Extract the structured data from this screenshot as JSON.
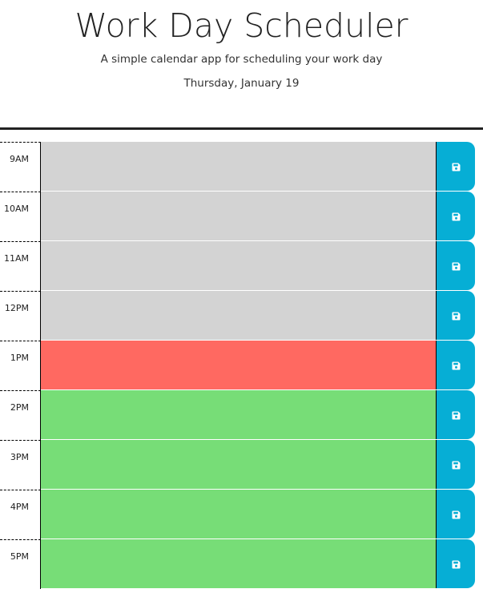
{
  "header": {
    "title": "Work Day Scheduler",
    "subtitle": "A simple calendar app for scheduling your work day",
    "current_day": "Thursday, January 19"
  },
  "colors": {
    "past": "#d3d3d3",
    "present": "#ff6961",
    "future": "#77dd77",
    "save_button": "#06aed5"
  },
  "time_blocks": [
    {
      "hour": "9AM",
      "status": "past",
      "text": "",
      "save_icon": "save-icon"
    },
    {
      "hour": "10AM",
      "status": "past",
      "text": "",
      "save_icon": "save-icon"
    },
    {
      "hour": "11AM",
      "status": "past",
      "text": "",
      "save_icon": "save-icon"
    },
    {
      "hour": "12PM",
      "status": "past",
      "text": "",
      "save_icon": "save-icon"
    },
    {
      "hour": "1PM",
      "status": "present",
      "text": "",
      "save_icon": "save-icon"
    },
    {
      "hour": "2PM",
      "status": "future",
      "text": "",
      "save_icon": "save-icon"
    },
    {
      "hour": "3PM",
      "status": "future",
      "text": "",
      "save_icon": "save-icon"
    },
    {
      "hour": "4PM",
      "status": "future",
      "text": "",
      "save_icon": "save-icon"
    },
    {
      "hour": "5PM",
      "status": "future",
      "text": "",
      "save_icon": "save-icon"
    }
  ]
}
